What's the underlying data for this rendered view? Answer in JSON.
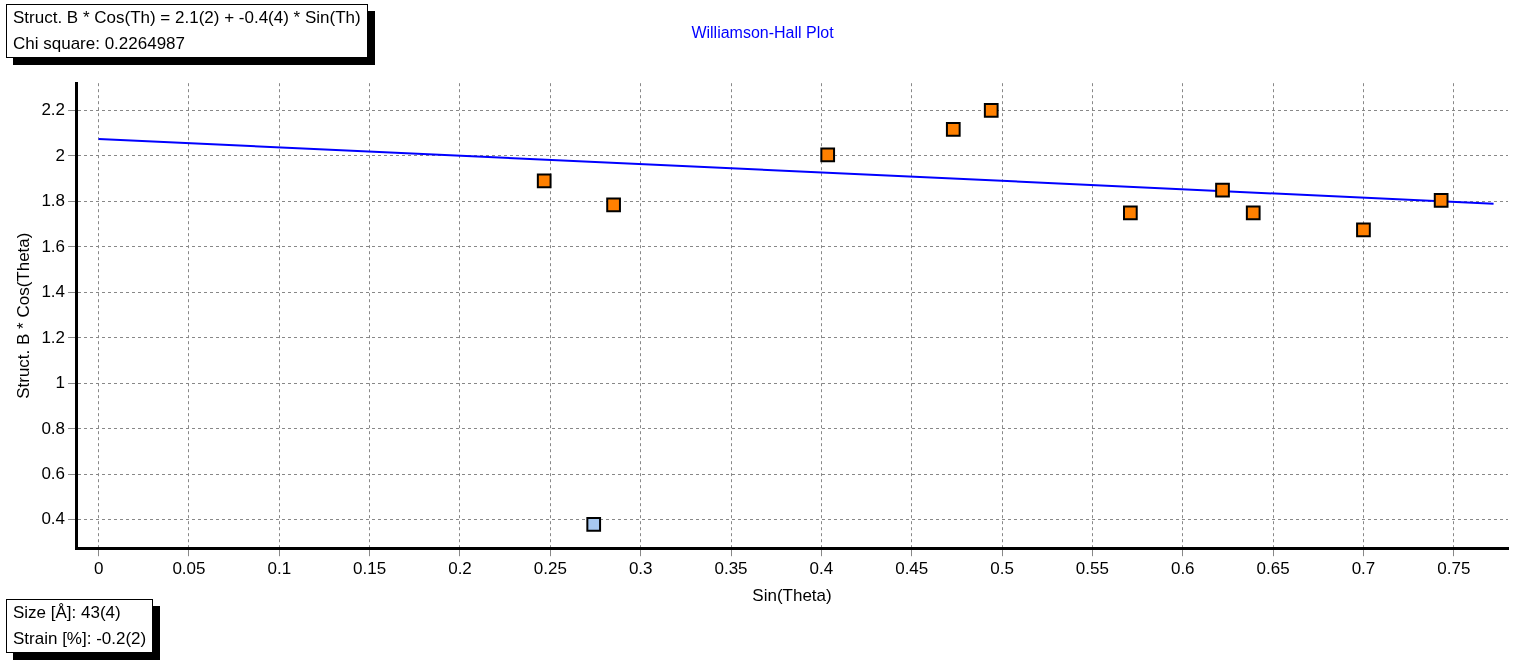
{
  "chart_data": {
    "type": "scatter",
    "title": "Williamson-Hall Plot",
    "xlabel": "Sin(Theta)",
    "ylabel": "Struct. B * Cos(Theta)",
    "annotations": [
      "Struct. B * Cos(Th) = 2.1(2) + -0.4(4) * Sin(Th)",
      "Chi square: 0.2264987",
      "Size [Å]: 43(4)",
      "Strain [%]: -0.2(2)"
    ],
    "series": [
      {
        "type": "scatter",
        "color": "#ff8000",
        "x": [
          0.2466,
          0.285,
          0.4035,
          0.473,
          0.494,
          0.571,
          0.622,
          0.639,
          0.7,
          0.743
        ],
        "values": [
          1.89,
          1.785,
          2.005,
          2.117,
          2.2,
          1.75,
          1.85,
          1.75,
          1.675,
          1.805
        ]
      },
      {
        "type": "scatter",
        "color": "#a8c8f0",
        "x": [
          0.274
        ],
        "values": [
          0.38
        ]
      },
      {
        "type": "line",
        "color": "#0000ff",
        "marker": "none",
        "x": [
          0,
          0.772
        ],
        "values": [
          2.075,
          1.79
        ]
      }
    ],
    "xlim": [
      -0.0125,
      0.78
    ],
    "xticks": [
      0,
      0.05,
      0.1,
      0.15,
      0.2,
      0.25,
      0.3,
      0.35,
      0.4,
      0.45,
      0.5,
      0.55,
      0.6,
      0.65,
      0.7,
      0.75
    ],
    "ylim": [
      0.275,
      2.32
    ],
    "yticks": [
      0.4,
      0.6,
      0.8,
      1,
      1.2,
      1.4,
      1.6,
      1.8,
      2,
      2.2
    ],
    "grid": true,
    "legend": false,
    "marker": "square"
  }
}
